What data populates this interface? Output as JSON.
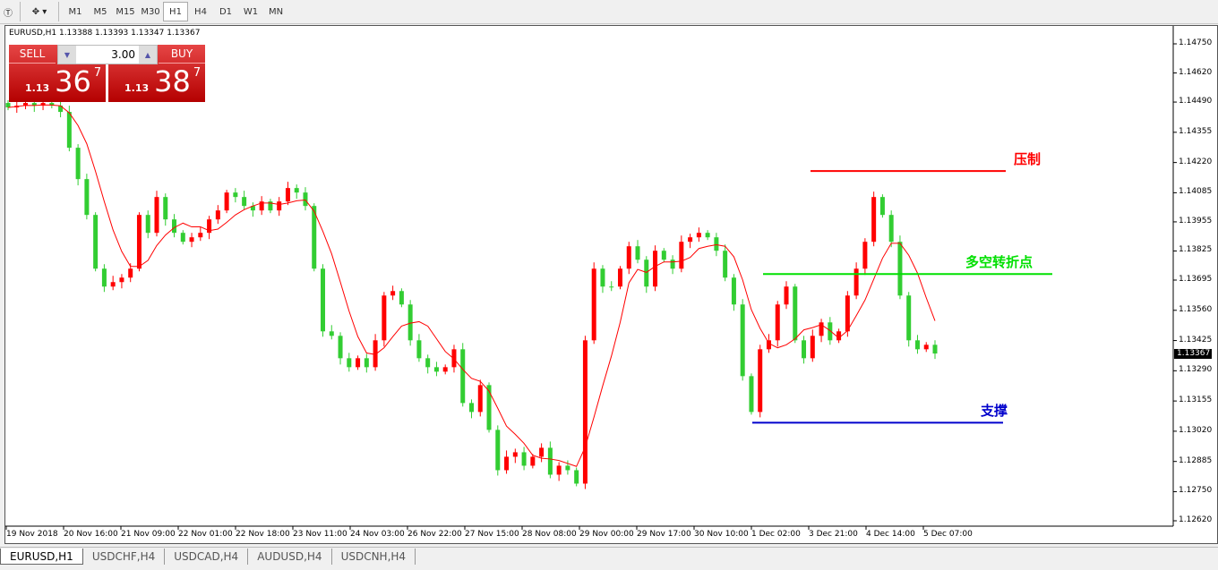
{
  "toolbar": {
    "timeframes": [
      "M1",
      "M5",
      "M15",
      "M30",
      "H1",
      "H4",
      "D1",
      "W1",
      "MN"
    ],
    "active": "H1"
  },
  "chart": {
    "title": "EURUSD,H1  1.13388 1.13393 1.13347 1.13367",
    "current_price": "1.13367",
    "colors": {
      "up": "#ff0000",
      "down": "#32cd32",
      "ma": "#ff0000"
    }
  },
  "trade": {
    "sell_label": "SELL",
    "buy_label": "BUY",
    "lot": "3.00",
    "sell_small": "1.13",
    "sell_big": "36",
    "sell_sup": "7",
    "buy_small": "1.13",
    "buy_big": "38",
    "buy_sup": "7"
  },
  "chart_data": {
    "type": "candlestick",
    "symbol": "EURUSD",
    "timeframe": "H1",
    "ylim": [
      1.1262,
      1.1475
    ],
    "y_ticks": [
      "1.14750",
      "1.14620",
      "1.14490",
      "1.14355",
      "1.14220",
      "1.14085",
      "1.13955",
      "1.13825",
      "1.13695",
      "1.13560",
      "1.13425",
      "1.13290",
      "1.13155",
      "1.13020",
      "1.12885",
      "1.12750",
      "1.12620"
    ],
    "x_ticks": [
      "19 Nov 2018",
      "20 Nov 16:00",
      "21 Nov 09:00",
      "22 Nov 01:00",
      "22 Nov 18:00",
      "23 Nov 11:00",
      "24 Nov 03:00",
      "26 Nov 22:00",
      "27 Nov 15:00",
      "28 Nov 08:00",
      "29 Nov 00:00",
      "29 Nov 17:00",
      "30 Nov 10:00",
      "1 Dec 02:00",
      "3 Dec 21:00",
      "4 Dec 14:00",
      "5 Dec 07:00"
    ],
    "closes": [
      1.14466,
      1.14474,
      1.14486,
      1.14474,
      1.14486,
      1.14474,
      1.14446,
      1.14286,
      1.14146,
      1.13986,
      1.13746,
      1.13666,
      1.13686,
      1.13706,
      1.13746,
      1.13986,
      1.13906,
      1.14066,
      1.13966,
      1.13906,
      1.13866,
      1.13886,
      1.13906,
      1.13966,
      1.14006,
      1.14086,
      1.14066,
      1.14026,
      1.14006,
      1.14046,
      1.14006,
      1.14046,
      1.14106,
      1.14086,
      1.14026,
      1.13746,
      1.13466,
      1.13446,
      1.13346,
      1.13306,
      1.13346,
      1.13306,
      1.13426,
      1.13626,
      1.13646,
      1.13586,
      1.13426,
      1.13346,
      1.13306,
      1.13286,
      1.13306,
      1.13386,
      1.13146,
      1.13106,
      1.13226,
      1.13026,
      1.12846,
      1.12906,
      1.12926,
      1.12866,
      1.12906,
      1.12946,
      1.12826,
      1.12866,
      1.12846,
      1.12786,
      1.13426,
      1.13746,
      1.13666,
      1.13666,
      1.13746,
      1.13846,
      1.13786,
      1.13666,
      1.13826,
      1.13786,
      1.13746,
      1.13866,
      1.13886,
      1.13906,
      1.13886,
      1.13826,
      1.13706,
      1.13586,
      1.13266,
      1.13106,
      1.13386,
      1.13426,
      1.13586,
      1.13666,
      1.13426,
      1.13346,
      1.13446,
      1.13506,
      1.13426,
      1.13466,
      1.13626,
      1.13746,
      1.13866,
      1.14066,
      1.13986,
      1.13866,
      1.13626,
      1.13426,
      1.13386,
      1.13406,
      1.13367
    ],
    "moving_average": "red line",
    "levels": [
      {
        "label": "压制",
        "price": 1.14182,
        "color": "#ff0000"
      },
      {
        "label": "多空转折点",
        "price": 1.13722,
        "color": "#00e000"
      },
      {
        "label": "支撑",
        "price": 1.13058,
        "color": "#0000cc"
      }
    ]
  },
  "tabs": [
    "EURUSD,H1",
    "USDCHF,H4",
    "USDCAD,H4",
    "AUDUSD,H4",
    "USDCNH,H4"
  ]
}
